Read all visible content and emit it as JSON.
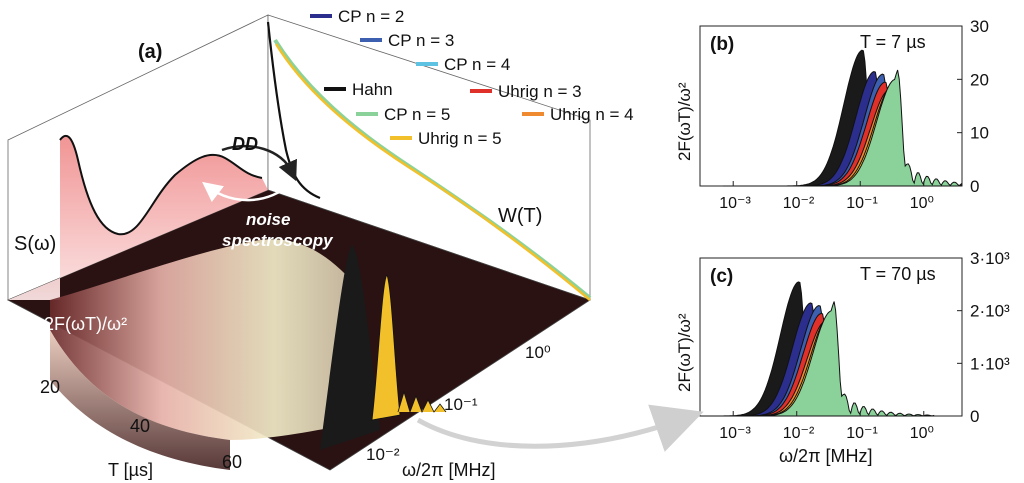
{
  "chart_data": [
    {
      "panel": "(a)",
      "type": "area",
      "labels": {
        "spectrum": "S(ω)",
        "decoherence": "W(T)",
        "filter": "2F(ωT)/ω²",
        "dd": "DD",
        "noise_line1": "noise",
        "noise_line2": "spectroscopy",
        "t_axis": "T [µs]",
        "w_axis": "ω/2π [MHz]"
      },
      "t_ticks": [
        "20",
        "40",
        "60"
      ],
      "w_ticks": [
        "10⁻²",
        "10⁻¹",
        "10⁰"
      ],
      "legend": [
        {
          "name": "CP n = 2",
          "color": "#2b2e8c"
        },
        {
          "name": "CP n = 3",
          "color": "#3c5fb0"
        },
        {
          "name": "CP n = 4",
          "color": "#5ec3e3"
        },
        {
          "name": "Hahn",
          "color": "#111111"
        },
        {
          "name": "Uhrig n = 3",
          "color": "#e0302a"
        },
        {
          "name": "CP n = 5",
          "color": "#8ad29a"
        },
        {
          "name": "Uhrig n = 4",
          "color": "#f08a30"
        },
        {
          "name": "Uhrig n = 5",
          "color": "#f2c02a"
        }
      ]
    },
    {
      "panel": "(b)",
      "type": "area",
      "annotation": "T = 7 µs",
      "ylabel": "2F(ωT)/ω²",
      "xlabel": "",
      "xscale": "log",
      "xlim": [
        0.0003,
        4
      ],
      "ylim": [
        0,
        30
      ],
      "x_ticks": [
        "10⁻³",
        "10⁻²",
        "10⁻¹",
        "10⁰"
      ],
      "y_ticks": [
        "0",
        "10",
        "20",
        "30"
      ],
      "series": [
        {
          "name": "Hahn",
          "peak_x": 0.11,
          "peak_y": 25.5,
          "color": "#1a1a1a"
        },
        {
          "name": "CP n = 2",
          "peak_x": 0.17,
          "peak_y": 21.5,
          "color": "#2b2e8c"
        },
        {
          "name": "CP n = 3",
          "peak_x": 0.23,
          "peak_y": 21.0,
          "color": "#3c5fb0"
        },
        {
          "name": "Uhrig n = 3",
          "peak_x": 0.25,
          "peak_y": 19.5,
          "color": "#e0302a"
        },
        {
          "name": "Uhrig n = 4",
          "peak_x": 0.29,
          "peak_y": 18.0,
          "color": "#f08a30"
        },
        {
          "name": "Uhrig n = 5",
          "peak_x": 0.33,
          "peak_y": 19.0,
          "color": "#f2c02a"
        },
        {
          "name": "CP n = 5",
          "peak_x": 0.36,
          "peak_y": 20.0,
          "color": "#8ad29a"
        }
      ]
    },
    {
      "panel": "(c)",
      "type": "area",
      "annotation": "T = 70 µs",
      "ylabel": "2F(ωT)/ω²",
      "xlabel": "ω/2π [MHz]",
      "xscale": "log",
      "xlim": [
        0.0003,
        4
      ],
      "ylim": [
        0,
        3000
      ],
      "x_ticks": [
        "10⁻³",
        "10⁻²",
        "10⁻¹",
        "10⁰"
      ],
      "y_ticks": [
        "0",
        "1·10³",
        "2·10³",
        "3·10³"
      ],
      "series": [
        {
          "name": "Hahn",
          "peak_x": 0.011,
          "peak_y": 2550,
          "color": "#1a1a1a"
        },
        {
          "name": "CP n = 2",
          "peak_x": 0.017,
          "peak_y": 2150,
          "color": "#2b2e8c"
        },
        {
          "name": "CP n = 3",
          "peak_x": 0.023,
          "peak_y": 2100,
          "color": "#3c5fb0"
        },
        {
          "name": "Uhrig n = 3",
          "peak_x": 0.025,
          "peak_y": 1950,
          "color": "#e0302a"
        },
        {
          "name": "Uhrig n = 4",
          "peak_x": 0.029,
          "peak_y": 1800,
          "color": "#f08a30"
        },
        {
          "name": "Uhrig n = 5",
          "peak_x": 0.033,
          "peak_y": 1900,
          "color": "#f2c02a"
        },
        {
          "name": "CP n = 5",
          "peak_x": 0.036,
          "peak_y": 2000,
          "color": "#8ad29a"
        }
      ]
    }
  ]
}
